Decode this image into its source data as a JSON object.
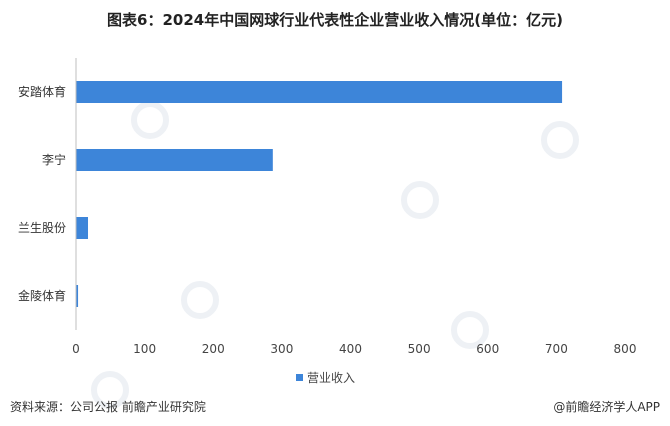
{
  "title": "图表6：2024年中国网球行业代表性企业营业收入情况(单位：亿元)",
  "chart_data": {
    "type": "bar",
    "orientation": "horizontal",
    "categories": [
      "安踏体育",
      "李宁",
      "兰生股份",
      "金陵体育"
    ],
    "series": [
      {
        "name": "营业收入",
        "values": [
          708.3,
          286.8,
          17.5,
          3.0
        ]
      }
    ],
    "xlim": [
      0,
      800
    ],
    "xticks": [
      0,
      100,
      200,
      300,
      400,
      500,
      600,
      700,
      800
    ],
    "grid": false,
    "legend_position": "bottom-center",
    "bar_color": "#3d85d9"
  },
  "footer": {
    "source": "资料来源：公司公报 前瞻产业研究院",
    "brand": "@前瞻经济学人APP"
  }
}
